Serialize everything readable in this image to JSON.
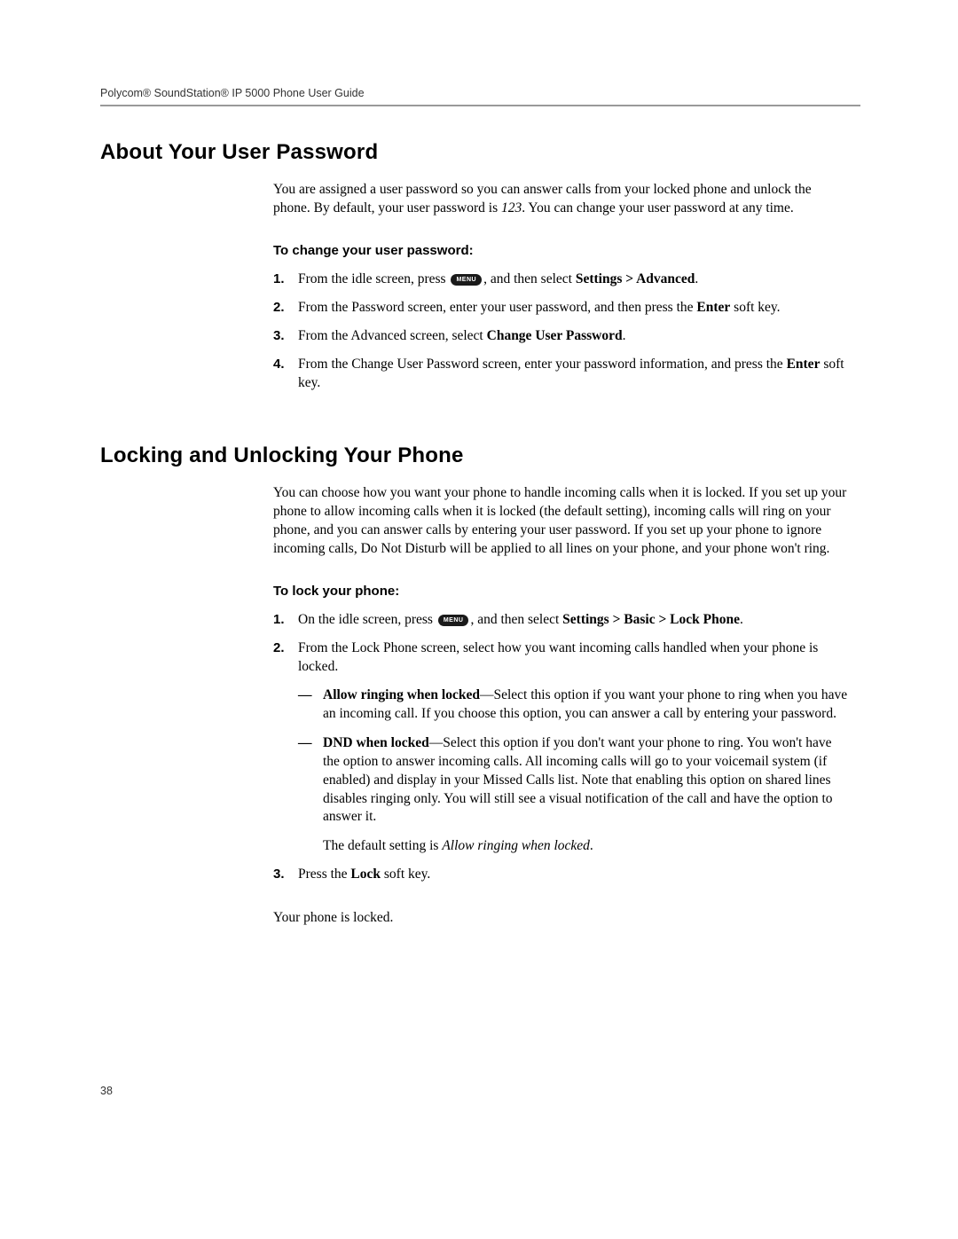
{
  "header": "Polycom® SoundStation® IP 5000 Phone User Guide",
  "page_number": "38",
  "menu_key_label": "MENU",
  "section1": {
    "title": "About Your User Password",
    "intro_a": "You are assigned a user password so you can answer calls from your locked phone and unlock the phone. By default, your user password is ",
    "intro_default": "123",
    "intro_b": ". You can change your user password at any time.",
    "sub": "To change your user password:",
    "steps": {
      "s1a": "From the idle screen, press ",
      "s1b": ", and then select ",
      "s1c": "Settings > Advanced",
      "s1d": ".",
      "s2a": "From the Password screen, enter your user password, and then press the ",
      "s2b": "Enter",
      "s2c": " soft key.",
      "s3a": "From the Advanced screen, select ",
      "s3b": "Change User Password",
      "s3c": ".",
      "s4a": "From the Change User Password screen, enter your password information, and press the ",
      "s4b": "Enter",
      "s4c": " soft key."
    }
  },
  "section2": {
    "title": "Locking and Unlocking Your Phone",
    "intro": "You can choose how you want your phone to handle incoming calls when it is locked. If you set up your phone to allow incoming calls when it is locked (the default setting), incoming calls will ring on your phone, and you can answer calls by entering your user password. If you set up your phone to ignore incoming calls, Do Not Disturb will be applied to all lines on your phone, and your phone won't ring.",
    "sub": "To lock your phone:",
    "steps": {
      "s1a": "On the idle screen, press ",
      "s1b": ", and then select ",
      "s1c": "Settings > Basic > Lock Phone",
      "s1d": ".",
      "s2": "From the Lock Phone screen, select how you want incoming calls handled when your phone is locked.",
      "opt1_label": "Allow ringing when locked",
      "opt1_body": "—Select this option if you want your phone to ring when you have an incoming call. If you choose this option, you can answer a call by entering your password.",
      "opt2_label": "DND when locked",
      "opt2_body": "—Select this option if you don't want your phone to ring. You won't have the option to answer incoming calls. All incoming calls will go to your voicemail system (if enabled) and display in your Missed Calls list. Note that enabling this option on shared lines disables ringing only. You will still see a visual notification of the call and have the option to answer it.",
      "default_a": "The default setting is ",
      "default_b": "Allow ringing when locked",
      "default_c": ".",
      "s3a": "Press the ",
      "s3b": "Lock",
      "s3c": " soft key."
    },
    "closing": "Your phone is locked."
  }
}
